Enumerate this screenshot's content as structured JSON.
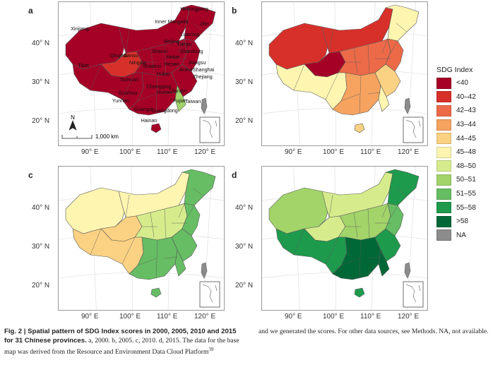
{
  "legend": {
    "title": "SDG Index",
    "classes": [
      {
        "label": "<40",
        "color": "#a50026"
      },
      {
        "label": "40–42",
        "color": "#d7302a"
      },
      {
        "label": "42–43",
        "color": "#ec6a48"
      },
      {
        "label": "43–44",
        "color": "#f6a35f"
      },
      {
        "label": "44–45",
        "color": "#fbd283"
      },
      {
        "label": "45–48",
        "color": "#fdf5b0"
      },
      {
        "label": "48–50",
        "color": "#d6ec8c"
      },
      {
        "label": "50–51",
        "color": "#a2d46a"
      },
      {
        "label": "51–55",
        "color": "#66bd63"
      },
      {
        "label": "55–58",
        "color": "#1e9a4d"
      },
      {
        "label": ">58",
        "color": "#006837"
      },
      {
        "label": "NA",
        "color": "#8c8c8c"
      }
    ]
  },
  "axes": {
    "lon_ticks": [
      "90° E",
      "100° E",
      "110° E",
      "120° E"
    ],
    "lat_ticks": [
      "40° N",
      "30° N",
      "20° N"
    ]
  },
  "panels": [
    {
      "letter": "a",
      "year": "2000",
      "regions": {
        "west": "#a50026",
        "north": "#a50026",
        "northeast": "#a50026",
        "qinghai": "#d7302a",
        "center": "#a50026",
        "southwest": "#a50026",
        "south": "#a50026",
        "east": "#a50026",
        "coastal": "#a50026",
        "fujian": "#a2d46a",
        "hainan": "#a50026",
        "taiwan": "#8c8c8c"
      }
    },
    {
      "letter": "b",
      "year": "2005",
      "regions": {
        "west": "#d7302a",
        "north": "#d7302a",
        "northeast": "#fdf5b0",
        "qinghai": "#a50026",
        "center": "#ec6a48",
        "southwest": "#fdf5b0",
        "south": "#f6a35f",
        "east": "#ec6a48",
        "coastal": "#fbd283",
        "fujian": "#fdf5b0",
        "hainan": "#fbd283",
        "taiwan": "#8c8c8c"
      }
    },
    {
      "letter": "c",
      "year": "2010",
      "regions": {
        "west": "#fdf5b0",
        "north": "#fdf5b0",
        "northeast": "#66bd63",
        "qinghai": "#fbd283",
        "center": "#d6ec8c",
        "southwest": "#fbd283",
        "south": "#66bd63",
        "east": "#66bd63",
        "coastal": "#66bd63",
        "fujian": "#66bd63",
        "hainan": "#66bd63",
        "taiwan": "#8c8c8c"
      }
    },
    {
      "letter": "d",
      "year": "2015",
      "regions": {
        "west": "#a2d46a",
        "north": "#d6ec8c",
        "northeast": "#1e9a4d",
        "qinghai": "#d6ec8c",
        "center": "#a2d46a",
        "southwest": "#1e9a4d",
        "south": "#006837",
        "east": "#66bd63",
        "coastal": "#1e9a4d",
        "fujian": "#006837",
        "hainan": "#1e9a4d",
        "taiwan": "#8c8c8c"
      }
    }
  ],
  "province_labels": [
    "Heilongjiang",
    "Jilin",
    "Liaoning",
    "Inner Mongolia",
    "Xinjiang",
    "Qinghai",
    "Tibet",
    "Gansu",
    "Ningxia",
    "Shaanxi",
    "Shanxi",
    "Hebei",
    "Beijing",
    "Tianjin",
    "Shandong",
    "Henan",
    "Jiangsu",
    "Anhui",
    "Shanghai",
    "Zhejiang",
    "Hubei",
    "Sichuan",
    "Chongqing",
    "Guizhou",
    "Hunan",
    "Jiangxi",
    "Fujian",
    "Yunnan",
    "Guangxi",
    "Guangdong",
    "Taiwan",
    "Hainan"
  ],
  "north_arrow": "N",
  "scale_bar": "1,000 km",
  "caption": {
    "fig_label": "Fig. 2 | Spatial pattern of SDG Index scores in 2000, 2005, 2010 and 2015 for 31 Chinese provinces.",
    "col1_rest": " a, 2000. b, 2005. c, 2010. d, 2015. The data for the base map was derived from the Resource and Environment Data Cloud Platform",
    "superscript": "39",
    "col2": "and we generated the scores. For other data sources, see Methods. NA, not available."
  }
}
